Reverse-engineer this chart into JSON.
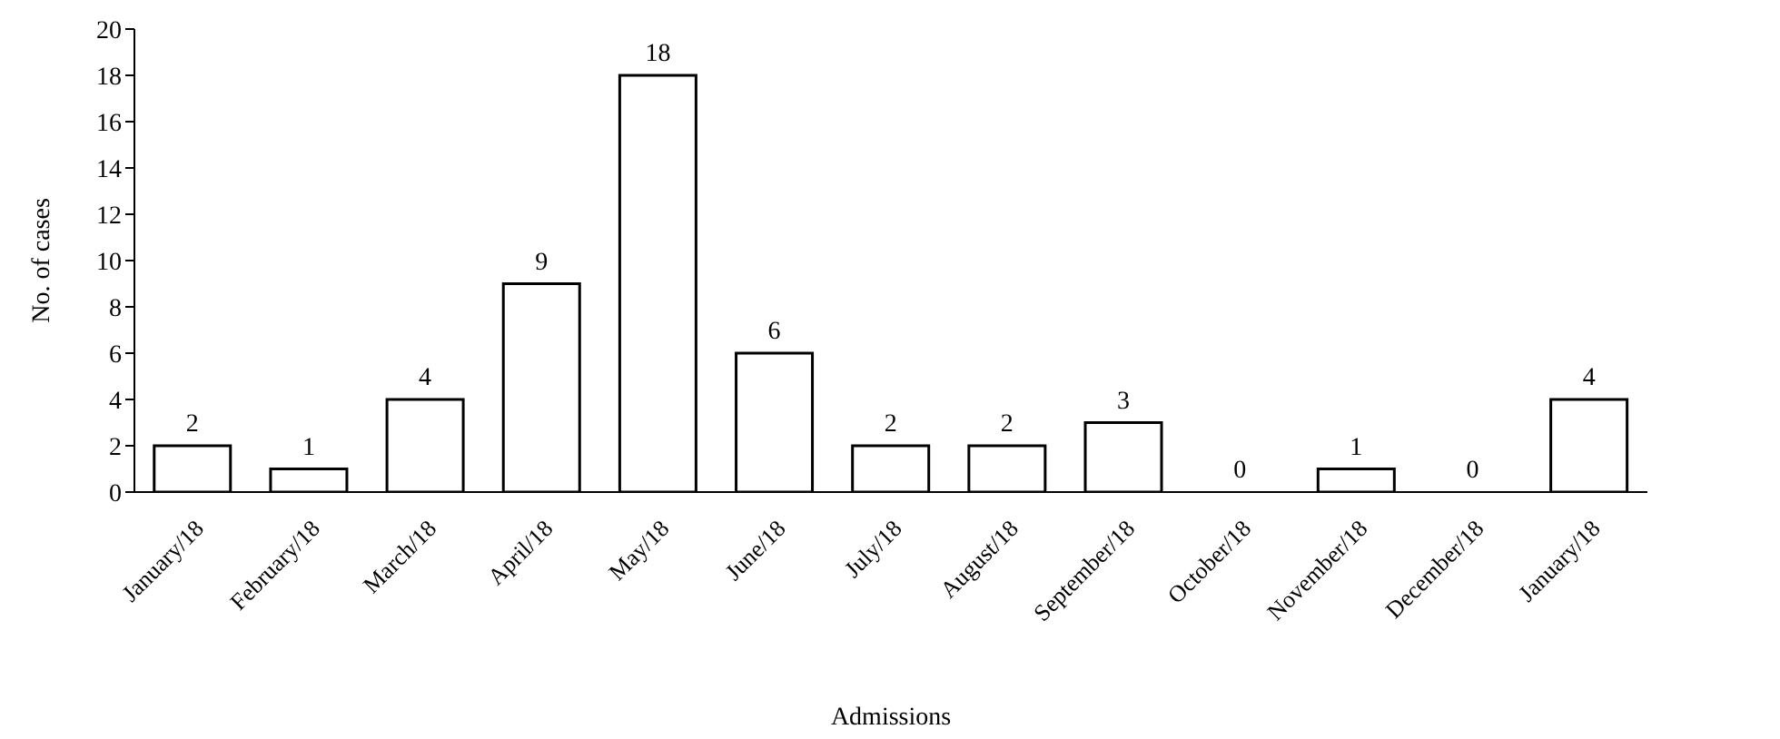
{
  "chart_data": {
    "type": "bar",
    "xlabel": "Admissions",
    "ylabel": "No. of cases",
    "categories": [
      "January/18",
      "February/18",
      "March/18",
      "April/18",
      "May/18",
      "June/18",
      "July/18",
      "August/18",
      "September/18",
      "October/18",
      "November/18",
      "December/18",
      "January/18"
    ],
    "values": [
      2,
      1,
      4,
      9,
      18,
      6,
      2,
      2,
      3,
      0,
      1,
      0,
      4
    ],
    "color": "#ffffff",
    "ylim": [
      0,
      20
    ],
    "yticks": [
      0,
      2,
      4,
      6,
      8,
      10,
      12,
      14,
      16,
      18,
      20
    ],
    "grid": false,
    "data_labels": true
  }
}
